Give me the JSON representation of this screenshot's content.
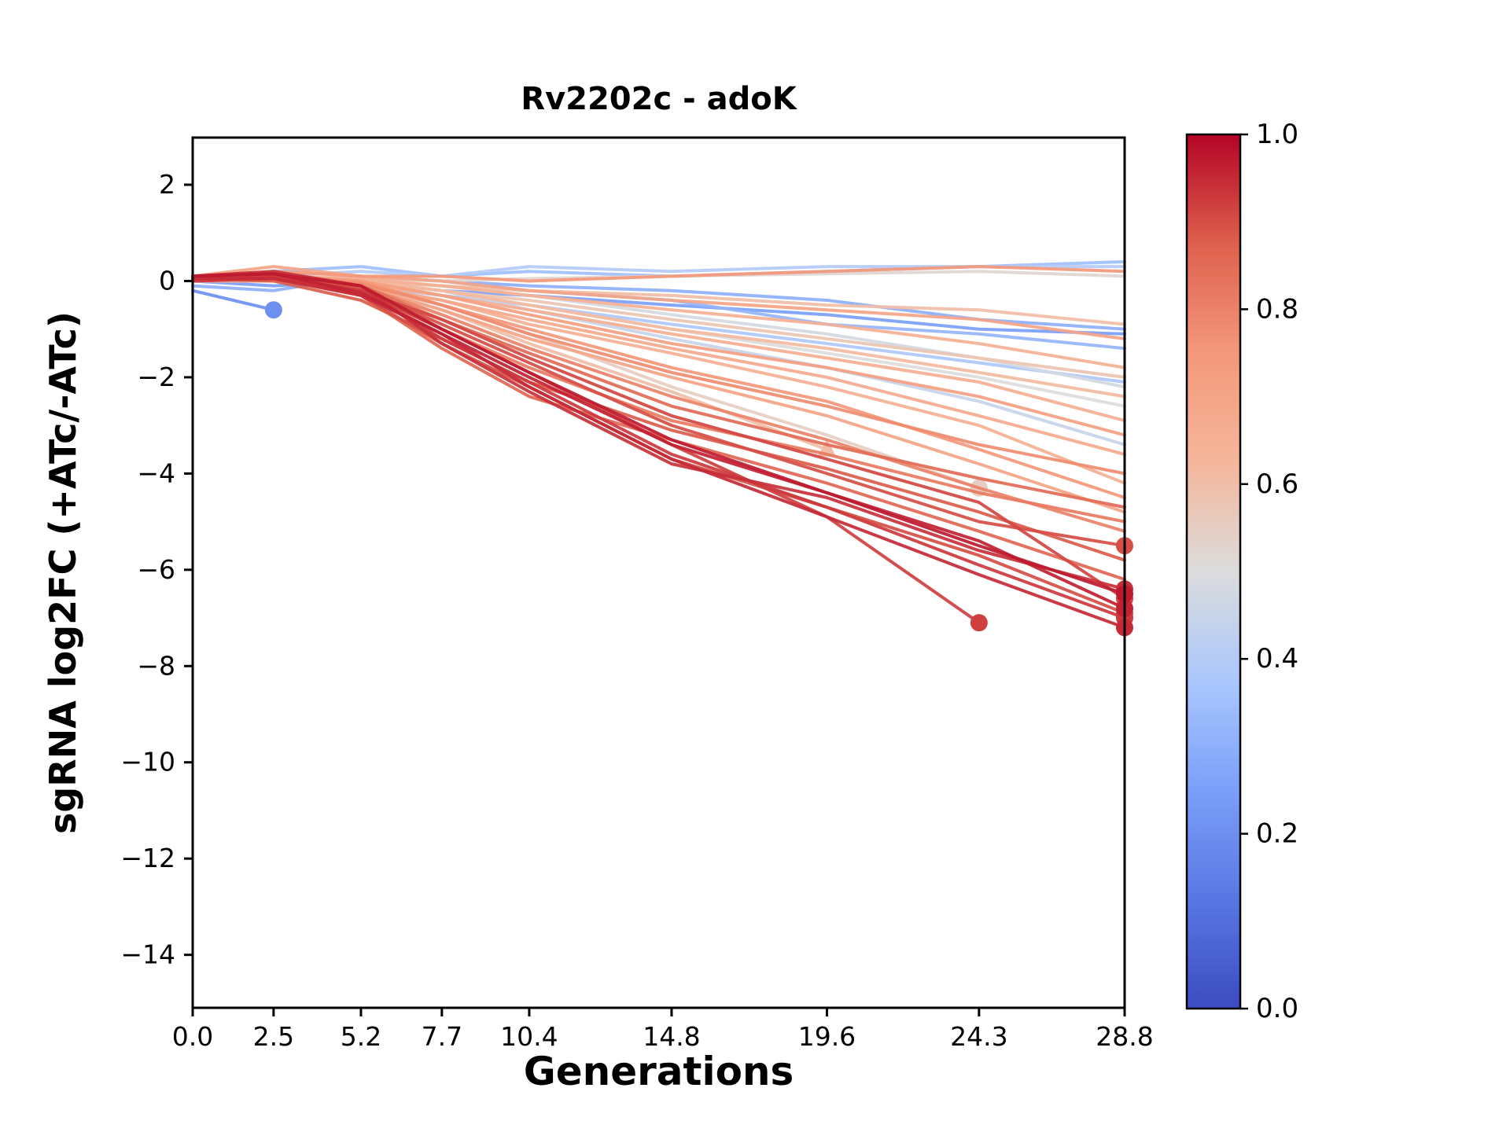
{
  "chart_data": {
    "type": "line",
    "title": "Rv2202c - adoK",
    "xlabel": "Generations",
    "ylabel": "sgRNA log2FC (+ATc/-ATc)",
    "x": [
      0.0,
      2.5,
      5.2,
      7.7,
      10.4,
      14.8,
      19.6,
      24.3,
      28.8
    ],
    "x_ticks": [
      0.0,
      2.5,
      5.2,
      7.7,
      10.4,
      14.8,
      19.6,
      24.3,
      28.8
    ],
    "x_tick_labels": [
      "0.0",
      "2.5",
      "5.2",
      "7.7",
      "10.4",
      "14.8",
      "19.6",
      "24.3",
      "28.8"
    ],
    "y_ticks": [
      2,
      0,
      -2,
      -4,
      -6,
      -8,
      -10,
      -12,
      -14
    ],
    "y_tick_labels": [
      "2",
      "0",
      "−2",
      "−4",
      "−6",
      "−8",
      "−10",
      "−12",
      "−14"
    ],
    "xlim": [
      0,
      28.8
    ],
    "ylim": [
      -15.1,
      2.98
    ],
    "grid": false,
    "legend": "none",
    "colormap": {
      "name": "coolwarm",
      "stops": [
        [
          0.0,
          "#3b4cc0"
        ],
        [
          0.125,
          "#5977e3"
        ],
        [
          0.25,
          "#7b9ff9"
        ],
        [
          0.375,
          "#aac7fd"
        ],
        [
          0.5,
          "#dcdcdc"
        ],
        [
          0.625,
          "#f5b69b"
        ],
        [
          0.75,
          "#f4987a"
        ],
        [
          0.875,
          "#de604d"
        ],
        [
          1.0,
          "#b40426"
        ]
      ]
    },
    "colorbar": {
      "tick_values": [
        0.0,
        0.2,
        0.4,
        0.6,
        0.8,
        1.0
      ],
      "tick_labels": [
        "0.0",
        "0.2",
        "0.4",
        "0.6",
        "0.8",
        "1.0"
      ],
      "min_label": "0.0",
      "max_label": "1.0"
    },
    "series": [
      {
        "cmap": 0.97,
        "y": [
          0.1,
          0.15,
          -0.1,
          -1.0,
          -1.9,
          -3.3,
          -4.4,
          -5.5,
          -6.5
        ],
        "marker": "circle"
      },
      {
        "cmap": 0.93,
        "y": [
          0.0,
          0.1,
          -0.2,
          -1.2,
          -2.1,
          -3.6,
          -4.7,
          -5.9,
          -7.0
        ],
        "marker": "circle"
      },
      {
        "cmap": 0.95,
        "y": [
          0.05,
          0.05,
          -0.3,
          -1.1,
          -2.2,
          -3.7,
          -4.9,
          -6.1,
          -7.2
        ],
        "marker": "circle"
      },
      {
        "cmap": 0.9,
        "y": [
          0.0,
          0.1,
          -0.15,
          -0.9,
          -1.7,
          -3.0,
          -4.0,
          -5.0,
          -5.5
        ],
        "marker": "circle"
      },
      {
        "cmap": 0.92,
        "x": [
          0.0,
          2.5,
          5.2,
          7.7,
          10.4,
          14.8,
          19.6,
          24.3
        ],
        "y": [
          0.0,
          0.05,
          -0.2,
          -1.0,
          -1.9,
          -3.4,
          -4.9,
          -7.1
        ],
        "marker": "circle"
      },
      {
        "cmap": 0.94,
        "y": [
          0.1,
          0.2,
          -0.1,
          -1.3,
          -2.3,
          -3.8,
          -4.5,
          -5.6,
          -6.4
        ],
        "marker": "circle"
      },
      {
        "cmap": 0.86,
        "y": [
          0.0,
          0.1,
          -0.3,
          -1.4,
          -2.4,
          -3.3,
          -4.2,
          -5.2,
          -6.2
        ],
        "marker": null
      },
      {
        "cmap": 0.88,
        "y": [
          0.05,
          0.0,
          -0.4,
          -1.2,
          -2.1,
          -3.1,
          -3.9,
          -4.8,
          -5.8
        ],
        "marker": null
      },
      {
        "cmap": 0.91,
        "y": [
          0.0,
          0.1,
          -0.2,
          -0.8,
          -1.6,
          -2.8,
          -3.7,
          -4.6,
          -6.6
        ],
        "marker": "circle"
      },
      {
        "cmap": 0.96,
        "y": [
          0.1,
          0.15,
          -0.25,
          -1.1,
          -2.0,
          -3.4,
          -4.4,
          -5.4,
          -6.8
        ],
        "marker": "circle"
      },
      {
        "cmap": 0.75,
        "y": [
          0.0,
          0.1,
          0.0,
          -0.5,
          -1.0,
          -1.8,
          -2.5,
          -3.5,
          -4.5
        ],
        "marker": null
      },
      {
        "cmap": 0.7,
        "y": [
          0.1,
          0.0,
          -0.1,
          -0.6,
          -1.2,
          -2.0,
          -2.8,
          -3.8,
          -4.8
        ],
        "marker": null
      },
      {
        "cmap": 0.65,
        "y": [
          0.0,
          0.05,
          -0.1,
          -0.4,
          -0.9,
          -1.5,
          -2.2,
          -3.0,
          -4.2
        ],
        "marker": null
      },
      {
        "cmap": 0.78,
        "y": [
          0.0,
          0.1,
          -0.05,
          -0.5,
          -1.1,
          -1.9,
          -2.6,
          -3.4,
          -4.0
        ],
        "marker": null
      },
      {
        "cmap": 0.6,
        "x": [
          0.0,
          2.5,
          5.2,
          7.7,
          10.4,
          14.8,
          19.6
        ],
        "y": [
          0.0,
          0.0,
          -0.1,
          -0.6,
          -1.3,
          -2.3,
          -3.5
        ],
        "marker": "triangle"
      },
      {
        "cmap": 0.55,
        "x": [
          0.0,
          2.5,
          5.2,
          7.7,
          10.4,
          14.8,
          19.6,
          24.3
        ],
        "y": [
          0.0,
          0.05,
          -0.1,
          -0.5,
          -1.1,
          -2.2,
          -3.2,
          -4.3
        ],
        "marker": "circle"
      },
      {
        "cmap": 0.72,
        "y": [
          0.05,
          0.1,
          0.0,
          -0.3,
          -0.7,
          -1.3,
          -1.8,
          -2.4,
          -3.2
        ],
        "marker": null
      },
      {
        "cmap": 0.68,
        "y": [
          0.0,
          0.0,
          -0.1,
          -0.4,
          -0.8,
          -1.4,
          -2.0,
          -2.8,
          -3.6
        ],
        "marker": null
      },
      {
        "cmap": 0.8,
        "y": [
          0.0,
          0.1,
          -0.1,
          -0.7,
          -1.4,
          -2.4,
          -3.3,
          -4.3,
          -5.2
        ],
        "marker": null
      },
      {
        "cmap": 0.62,
        "y": [
          0.05,
          0.0,
          0.0,
          -0.2,
          -0.5,
          -1.0,
          -1.4,
          -1.9,
          -2.4
        ],
        "marker": null
      },
      {
        "cmap": 0.7,
        "y": [
          0.1,
          0.3,
          0.1,
          0.0,
          -0.2,
          -0.4,
          -0.6,
          -0.8,
          -1.2
        ],
        "marker": null
      },
      {
        "cmap": 0.65,
        "y": [
          0.0,
          0.1,
          0.05,
          -0.1,
          -0.3,
          -0.6,
          -0.9,
          -1.3,
          -1.8
        ],
        "marker": null
      },
      {
        "cmap": 0.75,
        "y": [
          0.1,
          0.2,
          0.1,
          0.1,
          0.0,
          0.1,
          0.2,
          0.3,
          0.2
        ],
        "marker": null
      },
      {
        "cmap": 0.6,
        "y": [
          0.0,
          0.1,
          0.0,
          -0.1,
          -0.2,
          -0.3,
          -0.5,
          -0.6,
          -0.9
        ],
        "marker": null
      },
      {
        "cmap": 0.5,
        "y": [
          0.0,
          0.0,
          -0.05,
          -0.2,
          -0.5,
          -1.0,
          -1.5,
          -2.0,
          -2.6
        ],
        "marker": null
      },
      {
        "cmap": 0.48,
        "y": [
          0.0,
          0.05,
          0.0,
          -0.1,
          -0.3,
          -0.7,
          -1.1,
          -1.6,
          -2.2
        ],
        "marker": null
      },
      {
        "cmap": 0.52,
        "y": [
          0.05,
          0.1,
          0.05,
          0.0,
          0.05,
          0.1,
          0.15,
          0.2,
          0.1
        ],
        "marker": null
      },
      {
        "cmap": 0.35,
        "y": [
          0.0,
          0.2,
          0.3,
          0.1,
          0.2,
          0.1,
          0.2,
          0.3,
          0.4
        ],
        "marker": null
      },
      {
        "cmap": 0.3,
        "y": [
          -0.1,
          -0.2,
          0.1,
          0.0,
          -0.1,
          -0.2,
          -0.4,
          -0.8,
          -1.0
        ],
        "marker": null
      },
      {
        "cmap": 0.25,
        "y": [
          0.0,
          -0.1,
          0.0,
          -0.2,
          -0.3,
          -0.5,
          -0.7,
          -1.0,
          -1.1
        ],
        "marker": null
      },
      {
        "cmap": 0.4,
        "y": [
          0.1,
          0.1,
          0.2,
          0.1,
          0.3,
          0.2,
          0.3,
          0.3,
          0.3
        ],
        "marker": null
      },
      {
        "cmap": 0.2,
        "x": [
          0.0,
          2.5
        ],
        "y": [
          -0.2,
          -0.6
        ],
        "marker": "circle"
      },
      {
        "cmap": 0.38,
        "y": [
          0.0,
          0.1,
          -0.1,
          -0.3,
          -0.5,
          -0.9,
          -1.3,
          -1.7,
          -2.1
        ],
        "marker": null
      },
      {
        "cmap": 0.32,
        "y": [
          0.0,
          0.0,
          0.1,
          0.0,
          -0.2,
          -0.4,
          -0.9,
          -1.1,
          -1.4
        ],
        "marker": null
      },
      {
        "cmap": 0.45,
        "y": [
          0.0,
          0.05,
          0.0,
          -0.2,
          -0.6,
          -1.2,
          -1.8,
          -2.5,
          -3.4
        ],
        "marker": null
      },
      {
        "cmap": 0.82,
        "y": [
          0.0,
          0.1,
          -0.2,
          -1.0,
          -1.8,
          -2.9,
          -3.6,
          -4.4,
          -5.0
        ],
        "marker": null
      },
      {
        "cmap": 0.9,
        "y": [
          0.05,
          0.1,
          -0.3,
          -1.3,
          -2.2,
          -3.7,
          -4.7,
          -5.7,
          -6.9
        ],
        "marker": "circle"
      },
      {
        "cmap": 0.66,
        "y": [
          0.0,
          0.0,
          -0.05,
          -0.3,
          -0.6,
          -1.1,
          -1.6,
          -2.1,
          -2.9
        ],
        "marker": null
      },
      {
        "cmap": 0.58,
        "y": [
          0.0,
          0.1,
          0.0,
          -0.2,
          -0.4,
          -0.8,
          -1.2,
          -1.6,
          -2.0
        ],
        "marker": null
      },
      {
        "cmap": 0.85,
        "y": [
          0.0,
          0.05,
          -0.1,
          -0.8,
          -1.5,
          -2.6,
          -3.4,
          -4.1,
          -4.7
        ],
        "marker": null
      }
    ]
  }
}
